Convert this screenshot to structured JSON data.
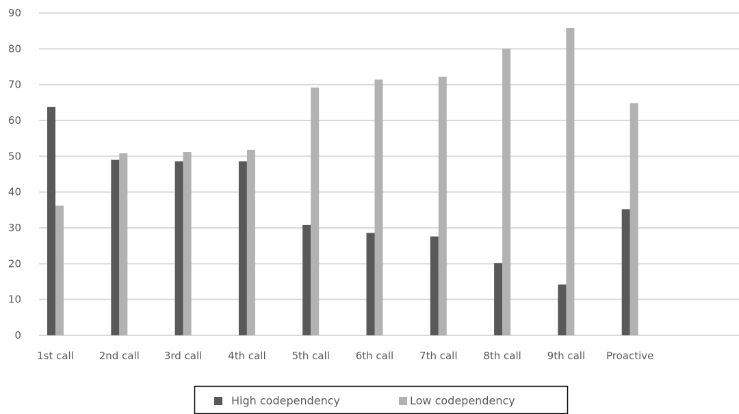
{
  "chart_data": {
    "type": "bar",
    "categories": [
      "1st call",
      "2nd call",
      "3rd call",
      "4th call",
      "5th call",
      "6th call",
      "7th call",
      "8th call",
      "9th call",
      "Proactive"
    ],
    "series": [
      {
        "name": "High codependency",
        "color": "#595959",
        "values": [
          63.8,
          49,
          48.6,
          48.6,
          30.8,
          28.6,
          27.6,
          20.2,
          14.2,
          35.2
        ]
      },
      {
        "name": "Low codependency",
        "color": "#b2b2b2",
        "values": [
          36.2,
          50.8,
          51.2,
          51.8,
          69.2,
          71.4,
          72.2,
          80,
          85.8,
          64.8
        ]
      }
    ],
    "ylim": [
      0,
      90
    ],
    "yticks": [
      0,
      10,
      20,
      30,
      40,
      50,
      60,
      70,
      80,
      90
    ],
    "grid": true,
    "legend_position": "bottom",
    "title": "",
    "xlabel": "",
    "ylabel": ""
  }
}
